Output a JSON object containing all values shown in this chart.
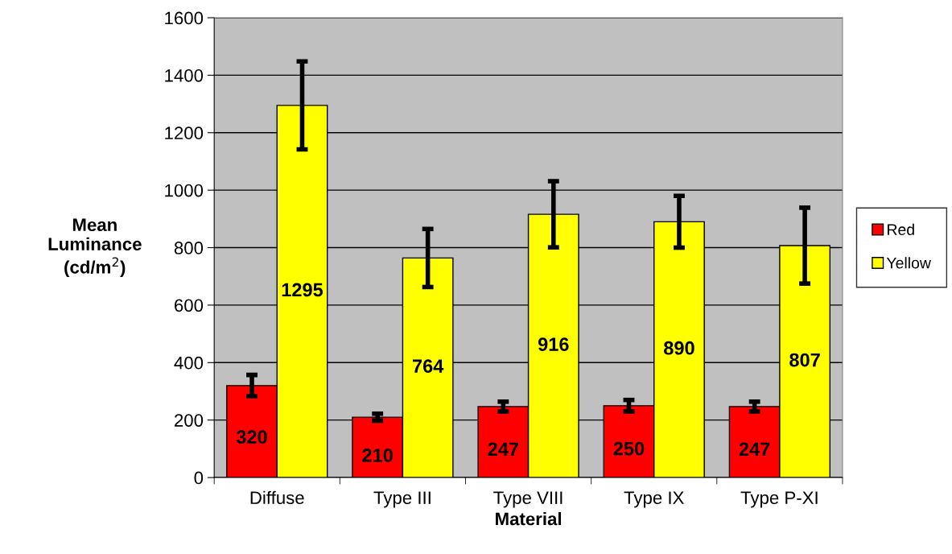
{
  "chart_data": {
    "type": "bar",
    "xlabel": "Material",
    "ylabel": "Mean\nLuminance\n(cd/m$^{2}$)",
    "categories": [
      "Diffuse",
      "Type III",
      "Type VIII",
      "Type IX",
      "Type P-XI"
    ],
    "series": [
      {
        "name": "Red",
        "color": "#ff0000",
        "values": [
          320,
          210,
          247,
          250,
          247
        ],
        "errors": [
          37,
          12,
          17,
          20,
          17
        ]
      },
      {
        "name": "Yellow",
        "color": "#ffff00",
        "values": [
          1295,
          764,
          916,
          890,
          807
        ],
        "errors": [
          153,
          101,
          115,
          90,
          132
        ]
      }
    ],
    "ylim": [
      0,
      1600
    ],
    "yticks": [
      0,
      200,
      400,
      600,
      800,
      1000,
      1200,
      1400,
      1600
    ],
    "grid": "y",
    "legend": "right",
    "data_labels": true
  }
}
